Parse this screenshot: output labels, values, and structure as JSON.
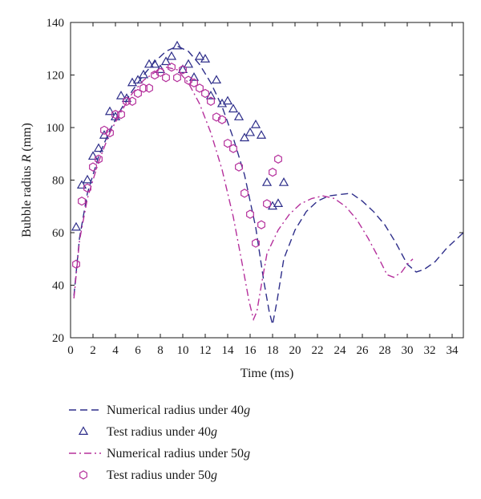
{
  "chart_data": {
    "type": "line",
    "xlabel": "Time (ms)",
    "ylabel_prefix": "Bubble radius ",
    "ylabel_symbol": "R",
    "ylabel_suffix": " (mm)",
    "xlim": [
      0,
      35
    ],
    "ylim": [
      20,
      140
    ],
    "xticks": [
      0,
      2,
      4,
      6,
      8,
      10,
      12,
      14,
      16,
      18,
      20,
      22,
      24,
      26,
      28,
      30,
      32,
      34
    ],
    "yticks": [
      20,
      40,
      60,
      80,
      100,
      120,
      140
    ],
    "grid": false,
    "legend_position": "below",
    "colors": {
      "series40": "#2e2e8a",
      "series50": "#b5309c",
      "axis": "#1a1a1a"
    },
    "series": [
      {
        "name_prefix": "Numerical radius under 40",
        "name_symbol": "g",
        "kind": "line",
        "dash": "dashed",
        "color": "#2e2e8a",
        "x": [
          0.3,
          0.8,
          1.5,
          2.5,
          3.5,
          4.5,
          5.5,
          6.5,
          7.5,
          8.5,
          9.5,
          10.5,
          11.5,
          12.5,
          13.5,
          14.5,
          15.5,
          16.5,
          17.2,
          17.7,
          18.0,
          18.4,
          19.0,
          20.0,
          21.0,
          22.0,
          23.0,
          24.0,
          25.0,
          26.0,
          27.0,
          28.0,
          29.0,
          30.0,
          30.8,
          31.5,
          32.5,
          33.5,
          34.5,
          35.0
        ],
        "y": [
          36,
          58,
          75,
          89,
          99,
          107,
          114,
          120,
          125,
          129,
          131,
          129,
          124,
          117,
          108,
          96,
          82,
          62,
          42,
          30,
          25,
          34,
          50,
          61,
          68,
          72,
          74,
          74.5,
          75,
          72,
          68,
          63,
          56,
          48,
          45,
          46,
          49,
          54,
          58,
          60
        ]
      },
      {
        "name_prefix": "Test radius under 40",
        "name_symbol": "g",
        "kind": "marker",
        "marker": "triangle",
        "color": "#2e2e8a",
        "x": [
          0.5,
          1.0,
          1.5,
          2.0,
          2.5,
          3.0,
          3.5,
          4.0,
          4.5,
          5.0,
          5.5,
          6.0,
          6.5,
          7.0,
          7.5,
          8.0,
          8.5,
          9.0,
          9.5,
          10.0,
          10.5,
          11.0,
          11.5,
          12.0,
          12.5,
          13.0,
          13.5,
          14.0,
          14.5,
          15.0,
          15.5,
          16.0,
          16.5,
          17.0,
          17.5,
          18.0,
          18.5,
          19.0
        ],
        "y": [
          62,
          78,
          80,
          89,
          92,
          97,
          106,
          104,
          112,
          111,
          117,
          118,
          120,
          124,
          124,
          122,
          125,
          127,
          131,
          122,
          124,
          119,
          127,
          126,
          112,
          118,
          109,
          110,
          107,
          104,
          96,
          98,
          101,
          97,
          79,
          70,
          71,
          79
        ]
      },
      {
        "name_prefix": "Numerical radius under 50",
        "name_symbol": "g",
        "kind": "line",
        "dash": "dashdot",
        "color": "#b5309c",
        "x": [
          0.3,
          0.8,
          1.5,
          2.5,
          3.5,
          4.5,
          5.5,
          6.5,
          7.5,
          8.5,
          9.5,
          10.5,
          11.5,
          12.5,
          13.5,
          14.5,
          15.3,
          15.9,
          16.3,
          16.6,
          17.0,
          17.5,
          18.5,
          19.5,
          20.5,
          21.5,
          22.5,
          23.5,
          24.5,
          25.5,
          26.5,
          27.5,
          28.2,
          28.8,
          29.5,
          30.0,
          30.5
        ],
        "y": [
          35,
          57,
          73,
          87,
          98,
          106,
          113,
          118,
          121,
          123,
          122,
          117,
          109,
          98,
          84,
          66,
          48,
          34,
          27,
          30,
          40,
          52,
          61,
          67,
          71,
          73,
          74,
          73,
          70,
          65,
          58,
          50,
          44,
          43,
          45,
          48,
          50
        ]
      },
      {
        "name_prefix": "Test radius under 50",
        "name_symbol": "g",
        "kind": "marker",
        "marker": "hexagon",
        "color": "#b5309c",
        "x": [
          0.5,
          1.0,
          1.5,
          2.0,
          2.5,
          3.0,
          3.5,
          4.0,
          4.5,
          5.0,
          5.5,
          6.0,
          6.5,
          7.0,
          7.5,
          8.0,
          8.5,
          9.0,
          9.5,
          10.0,
          10.5,
          11.0,
          11.5,
          12.0,
          12.5,
          13.0,
          13.5,
          14.0,
          14.5,
          15.0,
          15.5,
          16.0,
          16.5,
          17.0,
          17.5,
          18.0,
          18.5
        ],
        "y": [
          48,
          72,
          77,
          85,
          88,
          99,
          98,
          105,
          105,
          110,
          110,
          113,
          115,
          115,
          120,
          121,
          119,
          123,
          119,
          122,
          118,
          117,
          115,
          113,
          110,
          104,
          103,
          94,
          92,
          85,
          75,
          67,
          56,
          63,
          71,
          83,
          88
        ]
      }
    ]
  }
}
